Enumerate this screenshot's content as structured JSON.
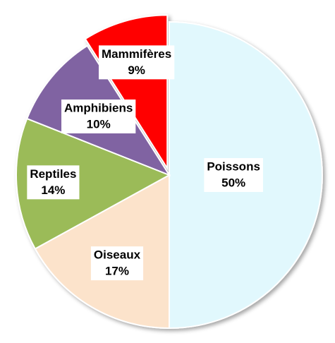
{
  "chart_data": {
    "type": "pie",
    "categories": [
      "Poissons",
      "Oiseaux",
      "Reptiles",
      "Amphibiens",
      "Mammifères"
    ],
    "values": [
      50,
      17,
      14,
      10,
      9
    ],
    "value_labels": [
      "50%",
      "17%",
      "14%",
      "10%",
      "9%"
    ],
    "colors": [
      "#e1f8fd",
      "#fce3cb",
      "#9bbb59",
      "#8064a2",
      "#ff0000"
    ],
    "start_angle": 0,
    "direction": "clockwise"
  }
}
